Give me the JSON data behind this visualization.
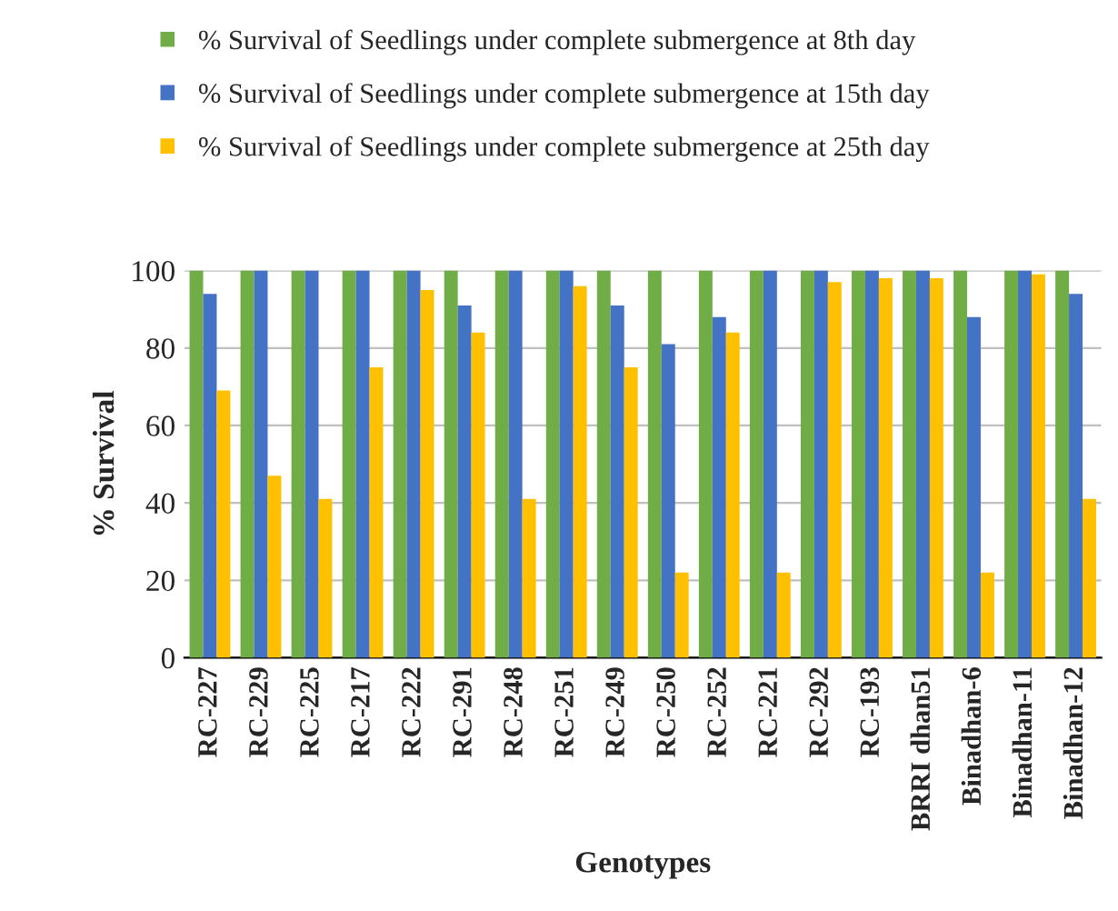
{
  "chart_data": {
    "type": "bar",
    "xlabel": "Genotypes",
    "ylabel": "% Survival",
    "categories": [
      "RC-227",
      "RC-229",
      "RC-225",
      "RC-217",
      "RC-222",
      "RC-291",
      "RC-248",
      "RC-251",
      "RC-249",
      "RC-250",
      "RC-252",
      "RC-221",
      "RC-292",
      "RC-193",
      "BRRI dhan51",
      "Binadhan-6",
      "Binadhan-11",
      "Binadhan-12"
    ],
    "series": [
      {
        "name": "% Survival of Seedlings under complete submergence at 8th day",
        "color": "#70ad47",
        "values": [
          100,
          100,
          100,
          100,
          100,
          100,
          100,
          100,
          100,
          100,
          100,
          100,
          100,
          100,
          100,
          100,
          100,
          100
        ]
      },
      {
        "name": "% Survival of Seedlings under complete submergence at 15th day",
        "color": "#4472c4",
        "values": [
          94,
          100,
          100,
          100,
          100,
          91,
          100,
          100,
          91,
          81,
          88,
          100,
          100,
          100,
          100,
          88,
          100,
          94
        ]
      },
      {
        "name": "% Survival of Seedlings under complete submergence at 25th day",
        "color": "#ffc000",
        "values": [
          69,
          47,
          41,
          75,
          95,
          84,
          41,
          96,
          75,
          22,
          84,
          22,
          97,
          98,
          98,
          22,
          99,
          41
        ]
      }
    ],
    "ylim": [
      0,
      100
    ],
    "yticks": [
      0,
      20,
      40,
      60,
      80,
      100
    ],
    "grid": "y",
    "legend": "top"
  }
}
